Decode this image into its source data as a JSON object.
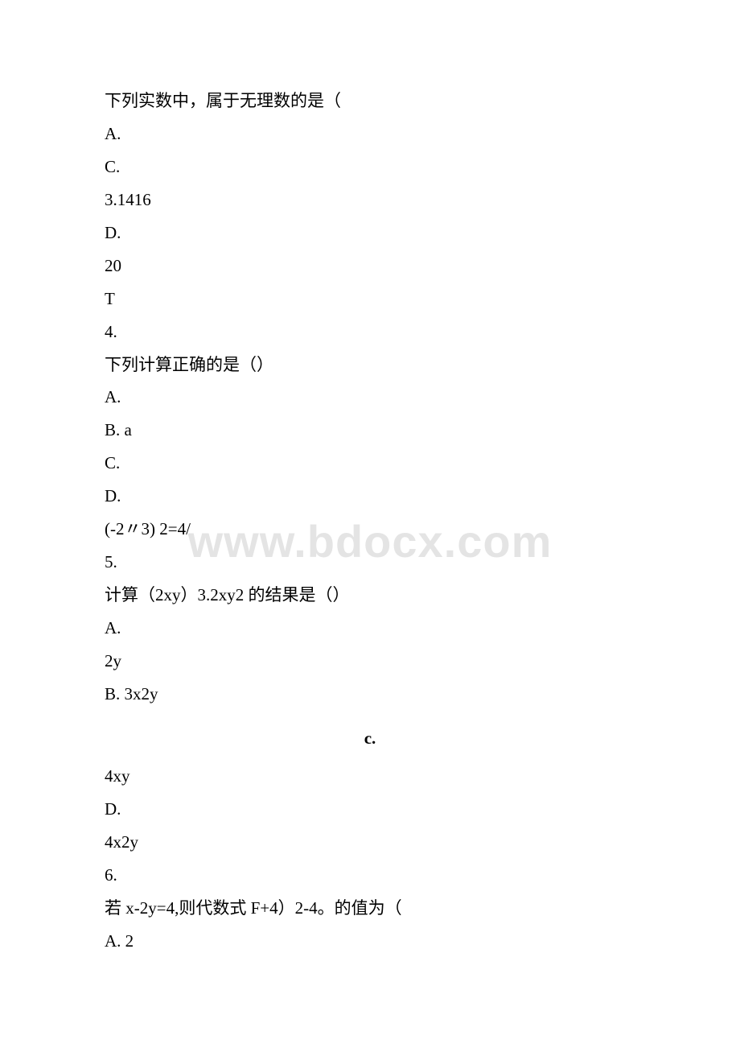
{
  "watermark": "www.bdocx.com",
  "lines": [
    {
      "text": "下列实数中，属于无理数的是（",
      "cls": "line"
    },
    {
      "text": "A.",
      "cls": "line latin"
    },
    {
      "text": "C.",
      "cls": "line latin"
    },
    {
      "text": "3.1416",
      "cls": "line latin"
    },
    {
      "text": "D.",
      "cls": "line latin"
    },
    {
      "text": "20",
      "cls": "line latin"
    },
    {
      "text": "T",
      "cls": "line latin"
    },
    {
      "text": "4.",
      "cls": "line latin"
    },
    {
      "text": "下列计算正确的是（）",
      "cls": "line"
    },
    {
      "text": "A.",
      "cls": "line latin"
    },
    {
      "text": "B. a",
      "cls": "line latin"
    },
    {
      "text": "C.",
      "cls": "line latin"
    },
    {
      "text": "D.",
      "cls": "line latin"
    },
    {
      "text": "(-2〃3) 2=4/",
      "cls": "line latin"
    },
    {
      "text": "5.",
      "cls": "line latin"
    },
    {
      "text": "计算（2xy）3.2xy2 的结果是（）",
      "cls": "line"
    },
    {
      "text": "A.",
      "cls": "line latin"
    },
    {
      "text": "2y",
      "cls": "line latin"
    },
    {
      "text": "B. 3x2y",
      "cls": "line latin"
    },
    {
      "text": "c.",
      "cls": "bold-c"
    },
    {
      "text": "4xy",
      "cls": "line latin"
    },
    {
      "text": "D.",
      "cls": "line latin"
    },
    {
      "text": "4x2y",
      "cls": "line latin"
    },
    {
      "text": "6.",
      "cls": "line latin"
    },
    {
      "text": "若 x-2y=4,则代数式 F+4）2-4。的值为（",
      "cls": "line"
    },
    {
      "text": "A. 2",
      "cls": "line latin"
    }
  ]
}
